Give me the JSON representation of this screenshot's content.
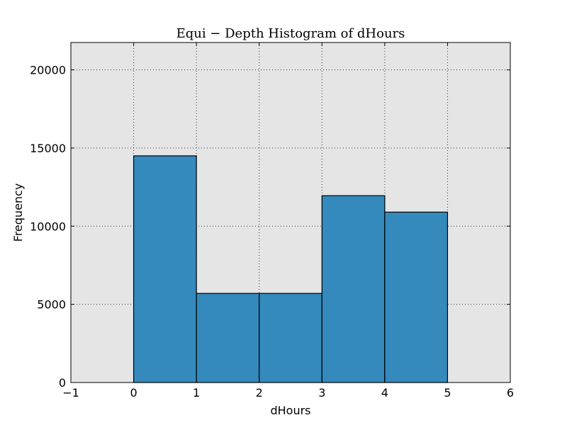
{
  "chart_data": {
    "type": "bar",
    "title": "Equi − Depth Histogram of dHours",
    "xlabel": "dHours",
    "ylabel": "Frequency",
    "bins": [
      {
        "x0": 0,
        "x1": 1,
        "value": 14500
      },
      {
        "x0": 1,
        "x1": 2,
        "value": 5700
      },
      {
        "x0": 2,
        "x1": 3,
        "value": 5700
      },
      {
        "x0": 3,
        "x1": 4,
        "value": 11950
      },
      {
        "x0": 4,
        "x1": 5,
        "value": 10900
      }
    ],
    "xlim": [
      -1,
      6
    ],
    "ylim": [
      0,
      21750
    ],
    "xticks": [
      -1,
      0,
      1,
      2,
      3,
      4,
      5,
      6
    ],
    "xtick_labels": [
      "−1",
      "0",
      "1",
      "2",
      "3",
      "4",
      "5",
      "6"
    ],
    "yticks": [
      0,
      5000,
      10000,
      15000,
      20000
    ],
    "ytick_labels": [
      "0",
      "5000",
      "10000",
      "15000",
      "20000"
    ],
    "grid": true,
    "colors": {
      "bar_fill": "#348abd",
      "plot_background": "#e5e5e5"
    }
  }
}
